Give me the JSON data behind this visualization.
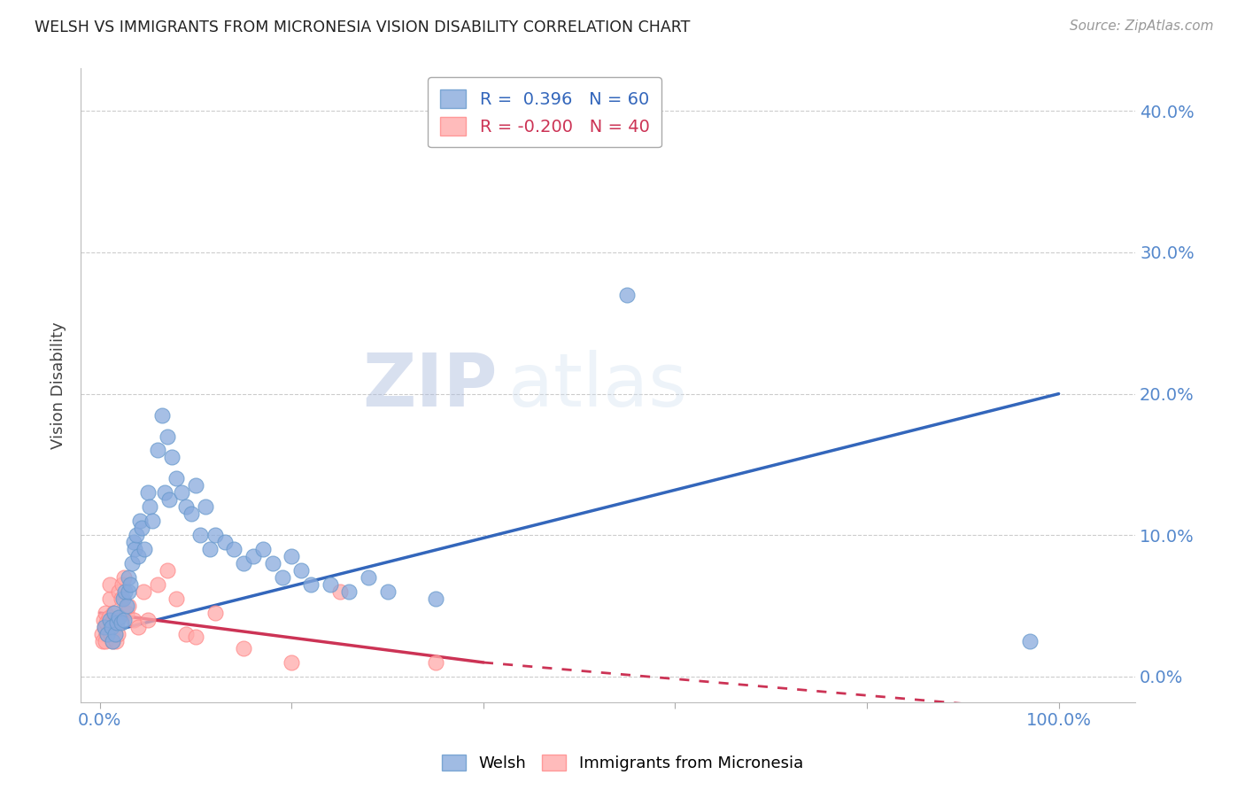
{
  "title": "WELSH VS IMMIGRANTS FROM MICRONESIA VISION DISABILITY CORRELATION CHART",
  "source": "Source: ZipAtlas.com",
  "ylabel": "Vision Disability",
  "ytick_values": [
    0.0,
    0.1,
    0.2,
    0.3,
    0.4
  ],
  "xtick_values": [
    0.0,
    0.2,
    0.4,
    0.6,
    0.8,
    1.0
  ],
  "xlim": [
    -0.02,
    1.08
  ],
  "ylim": [
    -0.018,
    0.43
  ],
  "welsh_R": 0.396,
  "welsh_N": 60,
  "micronesia_R": -0.2,
  "micronesia_N": 40,
  "welsh_color": "#88AADD",
  "micronesia_color": "#FFAAAA",
  "welsh_edge": "#6699CC",
  "micronesia_edge": "#FF8888",
  "trend_blue": "#3366BB",
  "trend_pink": "#CC3355",
  "watermark_zip": "ZIP",
  "watermark_atlas": "atlas",
  "welsh_x": [
    0.005,
    0.008,
    0.01,
    0.012,
    0.013,
    0.015,
    0.016,
    0.018,
    0.02,
    0.022,
    0.024,
    0.025,
    0.026,
    0.028,
    0.03,
    0.03,
    0.032,
    0.033,
    0.035,
    0.036,
    0.038,
    0.04,
    0.042,
    0.044,
    0.046,
    0.05,
    0.052,
    0.055,
    0.06,
    0.065,
    0.068,
    0.07,
    0.072,
    0.075,
    0.08,
    0.085,
    0.09,
    0.095,
    0.1,
    0.105,
    0.11,
    0.115,
    0.12,
    0.13,
    0.14,
    0.15,
    0.16,
    0.17,
    0.18,
    0.19,
    0.2,
    0.21,
    0.22,
    0.24,
    0.26,
    0.28,
    0.3,
    0.35,
    0.55,
    0.97
  ],
  "welsh_y": [
    0.035,
    0.03,
    0.04,
    0.035,
    0.025,
    0.045,
    0.03,
    0.038,
    0.042,
    0.038,
    0.055,
    0.04,
    0.06,
    0.05,
    0.06,
    0.07,
    0.065,
    0.08,
    0.095,
    0.09,
    0.1,
    0.085,
    0.11,
    0.105,
    0.09,
    0.13,
    0.12,
    0.11,
    0.16,
    0.185,
    0.13,
    0.17,
    0.125,
    0.155,
    0.14,
    0.13,
    0.12,
    0.115,
    0.135,
    0.1,
    0.12,
    0.09,
    0.1,
    0.095,
    0.09,
    0.08,
    0.085,
    0.09,
    0.08,
    0.07,
    0.085,
    0.075,
    0.065,
    0.065,
    0.06,
    0.07,
    0.06,
    0.055,
    0.27,
    0.025
  ],
  "micronesia_x": [
    0.002,
    0.003,
    0.004,
    0.005,
    0.006,
    0.006,
    0.007,
    0.008,
    0.009,
    0.01,
    0.01,
    0.011,
    0.012,
    0.013,
    0.014,
    0.015,
    0.016,
    0.017,
    0.018,
    0.019,
    0.02,
    0.022,
    0.023,
    0.025,
    0.028,
    0.03,
    0.035,
    0.04,
    0.045,
    0.05,
    0.06,
    0.07,
    0.08,
    0.09,
    0.1,
    0.12,
    0.15,
    0.2,
    0.25,
    0.35
  ],
  "micronesia_y": [
    0.03,
    0.025,
    0.04,
    0.035,
    0.025,
    0.045,
    0.038,
    0.03,
    0.042,
    0.055,
    0.065,
    0.03,
    0.038,
    0.025,
    0.045,
    0.035,
    0.03,
    0.025,
    0.04,
    0.03,
    0.06,
    0.055,
    0.065,
    0.07,
    0.045,
    0.05,
    0.04,
    0.035,
    0.06,
    0.04,
    0.065,
    0.075,
    0.055,
    0.03,
    0.028,
    0.045,
    0.02,
    0.01,
    0.06,
    0.01
  ],
  "trend_welsh_x0": 0.0,
  "trend_welsh_y0": 0.03,
  "trend_welsh_x1": 1.0,
  "trend_welsh_y1": 0.2,
  "trend_micro_x0": 0.0,
  "trend_micro_y0": 0.045,
  "trend_micro_x1": 0.4,
  "trend_micro_y1": 0.01,
  "trend_micro_dash_x1": 1.0,
  "trend_micro_dash_y1": -0.025
}
